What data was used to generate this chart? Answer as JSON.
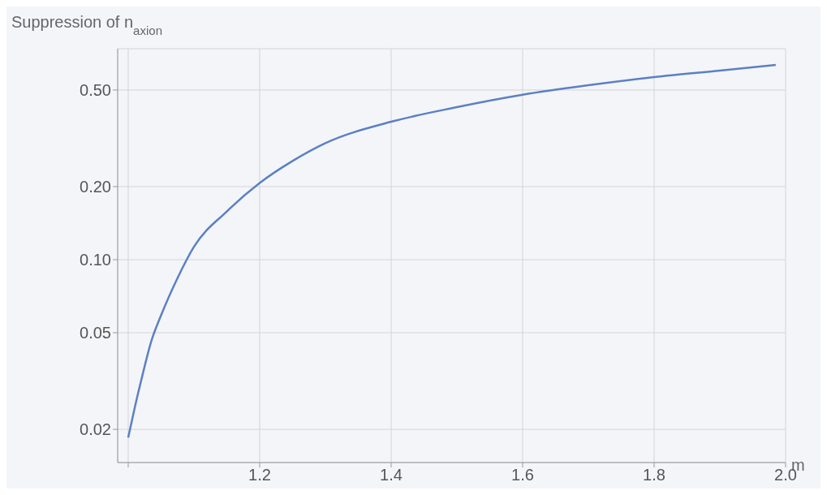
{
  "chart_data": {
    "type": "line",
    "ylabel": "Suppression of n$_{axion}$",
    "xlabel": "m",
    "x": [
      1.0,
      1.01,
      1.02,
      1.035,
      1.05,
      1.075,
      1.1,
      1.15,
      1.2,
      1.25,
      1.3,
      1.4,
      1.5,
      1.6,
      1.7,
      1.8,
      1.9,
      1.985
    ],
    "series": [
      {
        "color": "#5b80c4",
        "values": [
          0.0185,
          0.0246,
          0.032,
          0.046,
          0.059,
          0.084,
          0.113,
          0.158,
          0.207,
          0.255,
          0.302,
          0.37,
          0.425,
          0.478,
          0.523,
          0.565,
          0.601,
          0.634
        ]
      }
    ],
    "log": "y",
    "xlim": [
      0.984,
      2.0
    ],
    "ylim": [
      0.0146,
      0.74
    ],
    "xticks": [
      {
        "value": 1.0,
        "label": null
      },
      1.2,
      1.4,
      1.6,
      1.8,
      {
        "value": 2.0,
        "label": "2.0"
      }
    ],
    "yticks": [
      0.02,
      0.05,
      {
        "value": 0.1,
        "label": "0.10"
      },
      {
        "value": 0.2,
        "label": "0.20"
      },
      {
        "value": 0.5,
        "label": "0.50"
      }
    ],
    "grid": true,
    "marker": "none",
    "line_style": "solid",
    "legend": false
  }
}
